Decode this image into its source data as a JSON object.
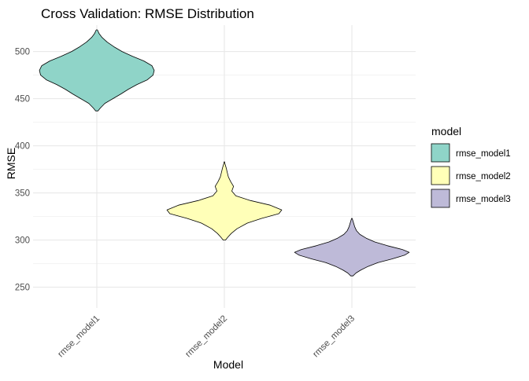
{
  "chart_data": {
    "type": "violin",
    "title": "Cross Validation: RMSE Distribution",
    "xlabel": "Model",
    "ylabel": "RMSE",
    "categories": [
      "rmse_model1",
      "rmse_model2",
      "rmse_model3"
    ],
    "ylim": [
      228,
      528
    ],
    "yticks": [
      250,
      300,
      350,
      400,
      450,
      500
    ],
    "grid": true,
    "legend": {
      "title": "model",
      "position": "right",
      "entries": [
        "rmse_model1",
        "rmse_model2",
        "rmse_model3"
      ]
    },
    "colors": {
      "rmse_model1": "#8FD4C8",
      "rmse_model2": "#FFFFB8",
      "rmse_model3": "#BEBAD8"
    },
    "series": [
      {
        "category": "rmse_model1",
        "y": [
          437,
          440,
          445,
          450,
          455,
          460,
          465,
          470,
          475,
          480,
          485,
          490,
          495,
          500,
          505,
          510,
          515,
          519,
          523
        ],
        "density": [
          0.02,
          0.06,
          0.14,
          0.28,
          0.42,
          0.55,
          0.7,
          0.88,
          0.98,
          1.0,
          0.96,
          0.82,
          0.62,
          0.44,
          0.3,
          0.18,
          0.09,
          0.04,
          0.01
        ]
      },
      {
        "category": "rmse_model2",
        "y": [
          300,
          303,
          307,
          312,
          318,
          323,
          328,
          332,
          337,
          342,
          347,
          352,
          357,
          362,
          367,
          372,
          377,
          381,
          383
        ],
        "density": [
          0.02,
          0.06,
          0.12,
          0.22,
          0.4,
          0.65,
          0.95,
          1.0,
          0.8,
          0.45,
          0.2,
          0.13,
          0.16,
          0.11,
          0.07,
          0.05,
          0.03,
          0.01,
          0.005
        ]
      },
      {
        "category": "rmse_model3",
        "y": [
          262,
          265,
          268,
          272,
          276,
          280,
          284,
          287,
          290,
          294,
          298,
          302,
          306,
          310,
          314,
          318,
          321,
          323
        ],
        "density": [
          0.02,
          0.07,
          0.15,
          0.28,
          0.45,
          0.7,
          0.92,
          1.0,
          0.88,
          0.62,
          0.4,
          0.25,
          0.14,
          0.08,
          0.05,
          0.03,
          0.015,
          0.005
        ]
      }
    ]
  }
}
